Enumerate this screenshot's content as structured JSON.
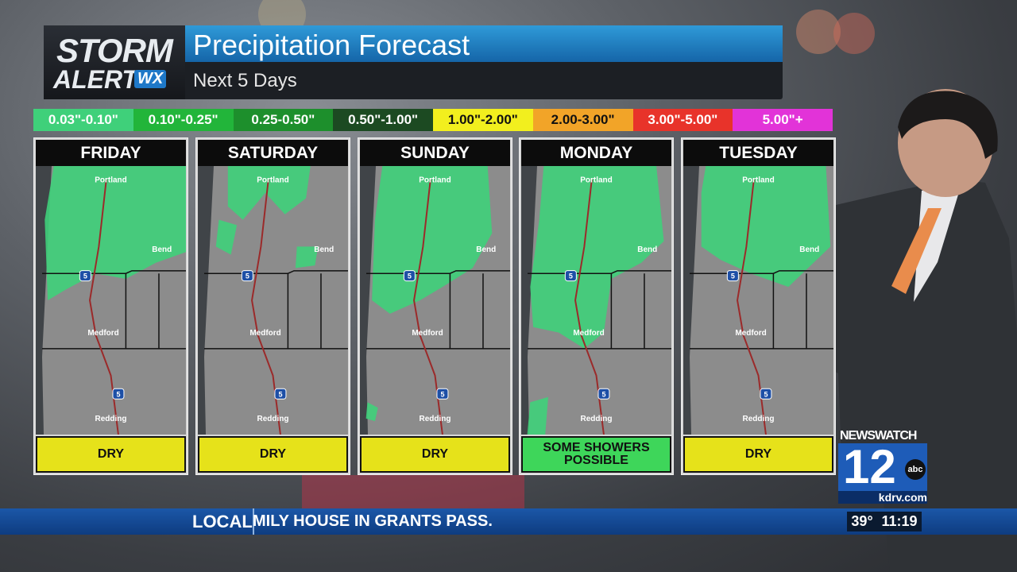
{
  "header": {
    "logo": {
      "line1": "STORM",
      "line2": "ALERT",
      "badge": "WX"
    },
    "title": "Precipitation Forecast",
    "subtitle": "Next 5 Days"
  },
  "legend": [
    {
      "label": "0.03\"-0.10\"",
      "color": "#3fd07a"
    },
    {
      "label": "0.10\"-0.25\"",
      "color": "#22b53a"
    },
    {
      "label": "0.25-0.50\"",
      "color": "#1d8f2c"
    },
    {
      "label": "0.50\"-1.00\"",
      "color": "#1c4a22"
    },
    {
      "label": "1.00\"-2.00\"",
      "color": "#f2ef1e"
    },
    {
      "label": "2.00-3.00\"",
      "color": "#f2a428"
    },
    {
      "label": "3.00\"-5.00\"",
      "color": "#e8332a"
    },
    {
      "label": "5.00\"+",
      "color": "#e233d8"
    }
  ],
  "panels": [
    {
      "day": "FRIDAY",
      "status": "DRY",
      "color": "#e6e21a"
    },
    {
      "day": "SATURDAY",
      "status": "DRY",
      "color": "#e6e21a"
    },
    {
      "day": "SUNDAY",
      "status": "DRY",
      "color": "#e6e21a"
    },
    {
      "day": "MONDAY",
      "status": "SOME SHOWERS POSSIBLE",
      "color": "#3ed65a"
    },
    {
      "day": "TUESDAY",
      "status": "DRY",
      "color": "#e6e21a"
    }
  ],
  "map_labels": {
    "cities": [
      "Portland",
      "Bend",
      "Medford",
      "Redding"
    ],
    "interstate": "5"
  },
  "station": {
    "name": "NEWSWATCH",
    "channel": "12",
    "network": "abc",
    "site": "kdrv.com"
  },
  "ticker": {
    "section": "LOCAL",
    "headline": "MILY HOUSE IN GRANTS PASS.",
    "temperature": "39°",
    "time": "11:19"
  }
}
